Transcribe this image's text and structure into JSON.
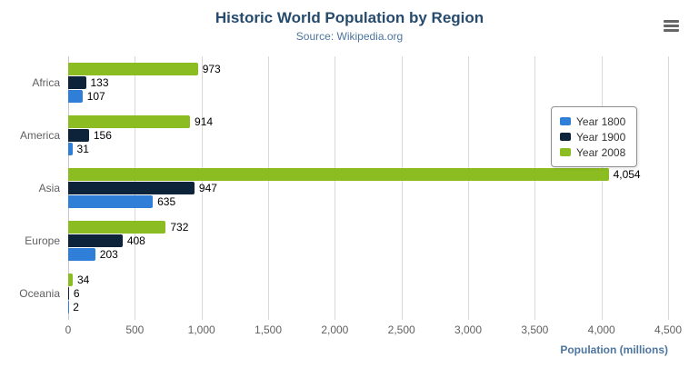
{
  "chart_data": {
    "type": "bar",
    "title": "Historic World Population by Region",
    "subtitle": "Source: Wikipedia.org",
    "categories": [
      "Africa",
      "America",
      "Asia",
      "Europe",
      "Oceania"
    ],
    "series": [
      {
        "name": "Year 1800",
        "color": "#2f7ed8",
        "values": [
          107,
          31,
          635,
          203,
          2
        ]
      },
      {
        "name": "Year 1900",
        "color": "#0d233a",
        "values": [
          133,
          156,
          947,
          408,
          6
        ]
      },
      {
        "name": "Year 2008",
        "color": "#8bbc21",
        "values": [
          973,
          914,
          4054,
          732,
          34
        ]
      }
    ],
    "bar_display_order_top_to_bottom": [
      "Year 2008",
      "Year 1900",
      "Year 1800"
    ],
    "xlabel": "Population (millions)",
    "xlim": [
      0,
      4500
    ],
    "xticks": [
      0,
      500,
      1000,
      1500,
      2000,
      2500,
      3000,
      3500,
      4000,
      4500
    ],
    "grid": true,
    "legend_position": "right",
    "value_labels": true
  },
  "menu": {
    "icon": "hamburger-icon"
  }
}
